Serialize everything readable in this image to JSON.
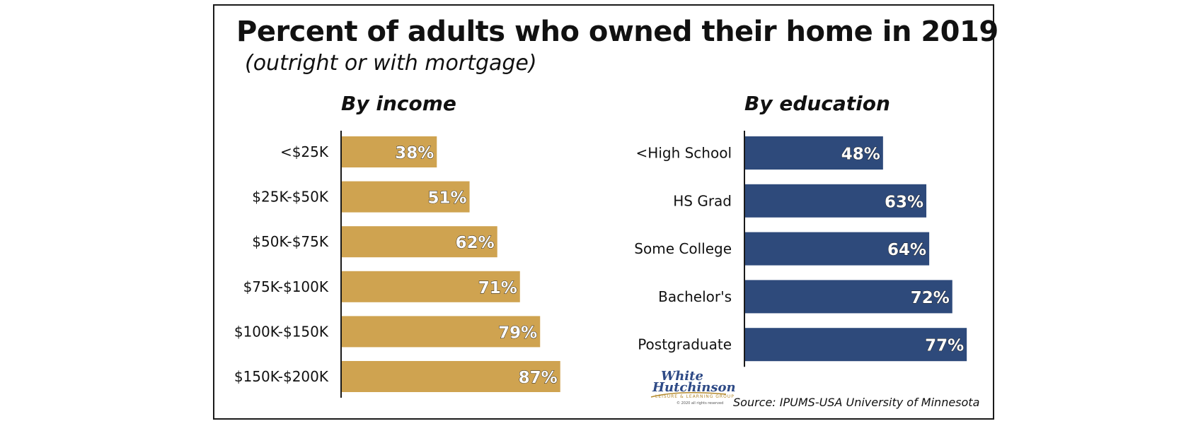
{
  "chart_title": "Percent of adults who owned their home in 2019",
  "chart_subtitle": "(outright or with mortgage)",
  "colors": {
    "income_bar": "#cfa350",
    "education_bar": "#2e4a7b",
    "axis": "#1a1a1a"
  },
  "chart_data": [
    {
      "type": "bar",
      "orientation": "horizontal",
      "title": "By income",
      "categories": [
        "<$25K",
        "$25K-$50K",
        "$50K-$75K",
        "$75K-$100K",
        "$100K-$150K",
        "$150K-$200K"
      ],
      "values": [
        38,
        51,
        62,
        71,
        79,
        87
      ],
      "value_labels": [
        "38%",
        "51%",
        "62%",
        "71%",
        "79%",
        "87%"
      ],
      "unit": "%",
      "xlim": [
        0,
        100
      ],
      "grid": false,
      "legend": "none"
    },
    {
      "type": "bar",
      "orientation": "horizontal",
      "title": "By education",
      "categories": [
        "<High School",
        "HS Grad",
        "Some College",
        "Bachelor's",
        "Postgraduate"
      ],
      "values": [
        48,
        63,
        64,
        72,
        77
      ],
      "value_labels": [
        "48%",
        "63%",
        "64%",
        "72%",
        "77%"
      ],
      "unit": "%",
      "xlim": [
        0,
        100
      ],
      "grid": false,
      "legend": "none"
    }
  ],
  "logo": {
    "line1": "White",
    "line2": "Hutchinson",
    "line3": "LEISURE & LEARNING GROUP",
    "line4": "© 2020 all rights reserved"
  },
  "source": "Source: IPUMS-USA University of Minnesota"
}
